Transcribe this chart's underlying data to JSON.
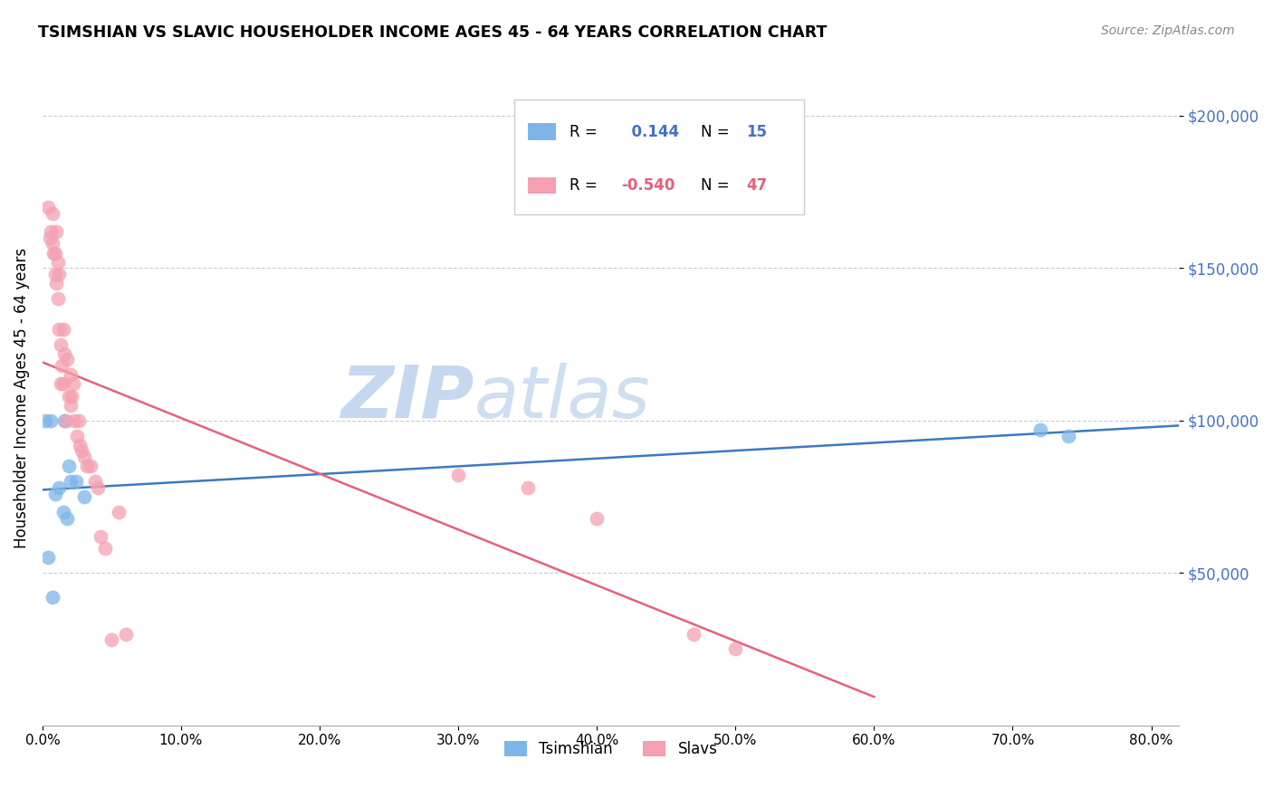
{
  "title": "TSIMSHIAN VS SLAVIC HOUSEHOLDER INCOME AGES 45 - 64 YEARS CORRELATION CHART",
  "source": "Source: ZipAtlas.com",
  "ylabel": "Householder Income Ages 45 - 64 years",
  "ytick_values": [
    50000,
    100000,
    150000,
    200000
  ],
  "xlim": [
    0.0,
    0.82
  ],
  "ylim": [
    0,
    215000
  ],
  "tsimshian_R": 0.144,
  "tsimshian_N": 15,
  "slavic_R": -0.54,
  "slavic_N": 47,
  "tsimshian_color": "#7eb5e8",
  "slavic_color": "#f4a0b0",
  "tsimshian_line_color": "#3a7abf",
  "slavic_line_color": "#e8607a",
  "legend_border_color": "#cccccc",
  "grid_color": "#cccccc",
  "ytick_color": "#4472c4",
  "watermark_color": "#c5d8f0",
  "tsimshian_x": [
    0.002,
    0.006,
    0.004,
    0.007,
    0.009,
    0.012,
    0.015,
    0.018,
    0.02,
    0.016,
    0.019,
    0.024,
    0.03,
    0.72,
    0.74
  ],
  "tsimshian_y": [
    100000,
    100000,
    55000,
    42000,
    76000,
    78000,
    70000,
    68000,
    80000,
    100000,
    85000,
    80000,
    75000,
    97000,
    95000
  ],
  "slavic_x": [
    0.004,
    0.005,
    0.006,
    0.007,
    0.007,
    0.008,
    0.009,
    0.009,
    0.01,
    0.01,
    0.011,
    0.011,
    0.012,
    0.012,
    0.013,
    0.013,
    0.014,
    0.015,
    0.015,
    0.016,
    0.017,
    0.018,
    0.019,
    0.02,
    0.02,
    0.021,
    0.022,
    0.023,
    0.025,
    0.026,
    0.027,
    0.028,
    0.03,
    0.032,
    0.035,
    0.038,
    0.04,
    0.042,
    0.045,
    0.05,
    0.055,
    0.06,
    0.3,
    0.35,
    0.4,
    0.47,
    0.5
  ],
  "slavic_y": [
    170000,
    160000,
    162000,
    158000,
    168000,
    155000,
    148000,
    155000,
    145000,
    162000,
    140000,
    152000,
    130000,
    148000,
    112000,
    125000,
    118000,
    130000,
    112000,
    122000,
    100000,
    120000,
    108000,
    115000,
    105000,
    108000,
    112000,
    100000,
    95000,
    100000,
    92000,
    90000,
    88000,
    85000,
    85000,
    80000,
    78000,
    62000,
    58000,
    28000,
    70000,
    30000,
    82000,
    78000,
    68000,
    30000,
    25000
  ]
}
